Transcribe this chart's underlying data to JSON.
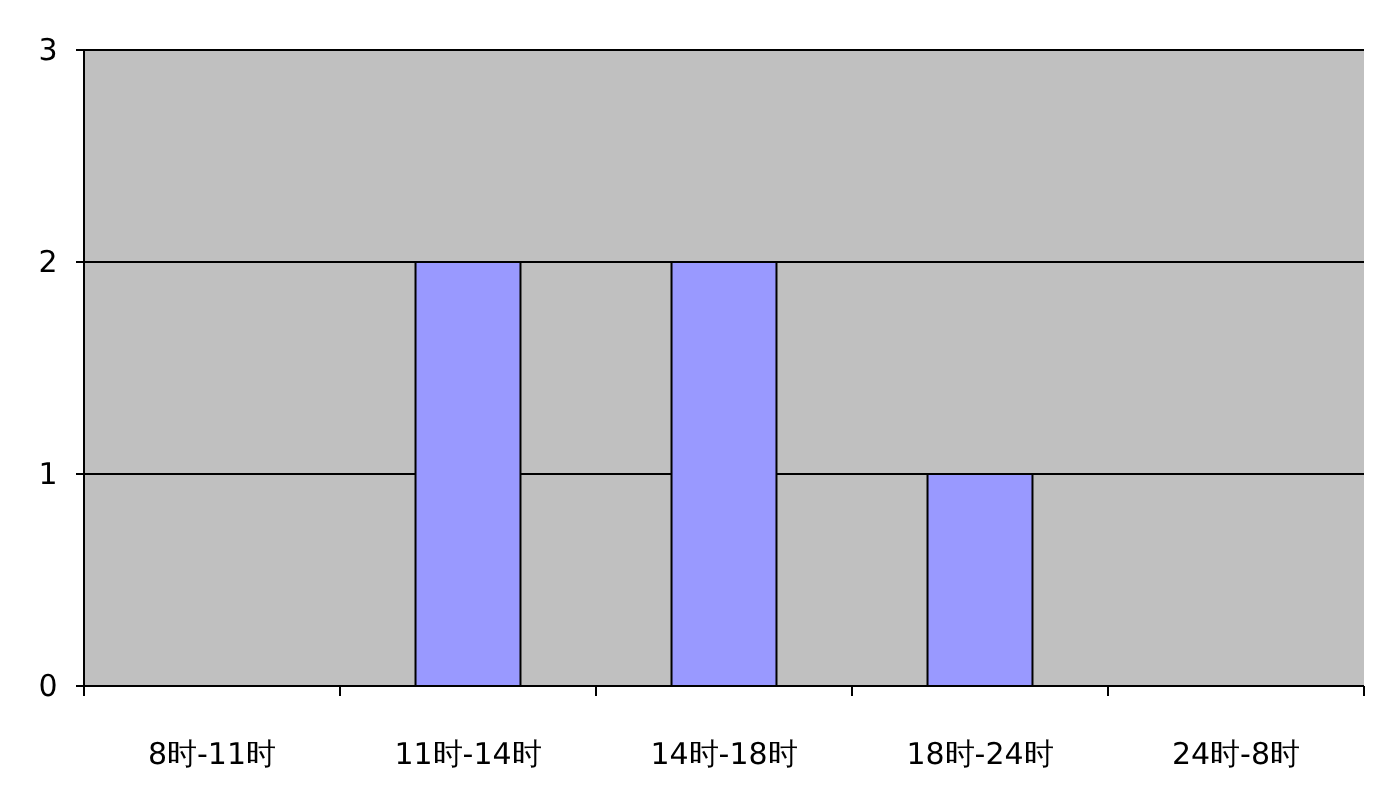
{
  "chart_data": {
    "type": "bar",
    "categories": [
      "8时-11时",
      "11时-14时",
      "14时-18时",
      "18时-24时",
      "24时-8时"
    ],
    "values": [
      0,
      2,
      2,
      1,
      0
    ],
    "color": "#9999ff",
    "ylim": [
      0,
      3
    ],
    "yticks": [
      0,
      1,
      2,
      3
    ],
    "grid": "y"
  }
}
